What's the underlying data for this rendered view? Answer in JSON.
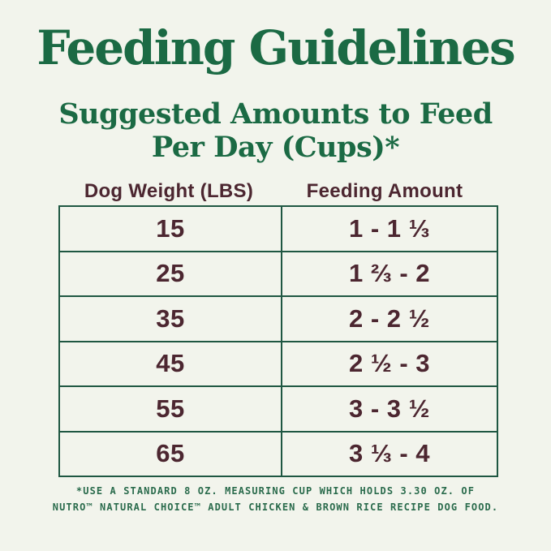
{
  "header": {
    "title": "Feeding Guidelines",
    "subtitle_line1": "Suggested Amounts to Feed",
    "subtitle_line2": "Per Day (Cups)*"
  },
  "table": {
    "headers": [
      "Dog Weight (LBS)",
      "Feeding Amount"
    ],
    "rows": [
      {
        "weight": "15",
        "amount": "1 - 1 ⅓"
      },
      {
        "weight": "25",
        "amount": "1 ⅔ - 2"
      },
      {
        "weight": "35",
        "amount": "2 - 2 ½"
      },
      {
        "weight": "45",
        "amount": "2 ½ - 3"
      },
      {
        "weight": "55",
        "amount": "3 - 3 ½"
      },
      {
        "weight": "65",
        "amount": "3 ⅓ - 4"
      }
    ]
  },
  "footnote": {
    "line1": "*USE A STANDARD 8 OZ. MEASURING CUP WHICH HOLDS 3.30 OZ. OF",
    "line2": "NUTRO™ NATURAL CHOICE™ ADULT CHICKEN & BROWN RICE RECIPE DOG FOOD."
  },
  "colors": {
    "background": "#f2f4ec",
    "title_green": "#1b6a44",
    "footnote_green": "#2a6b4c",
    "table_text_maroon": "#4c2630",
    "table_border_green": "#1f5742"
  }
}
